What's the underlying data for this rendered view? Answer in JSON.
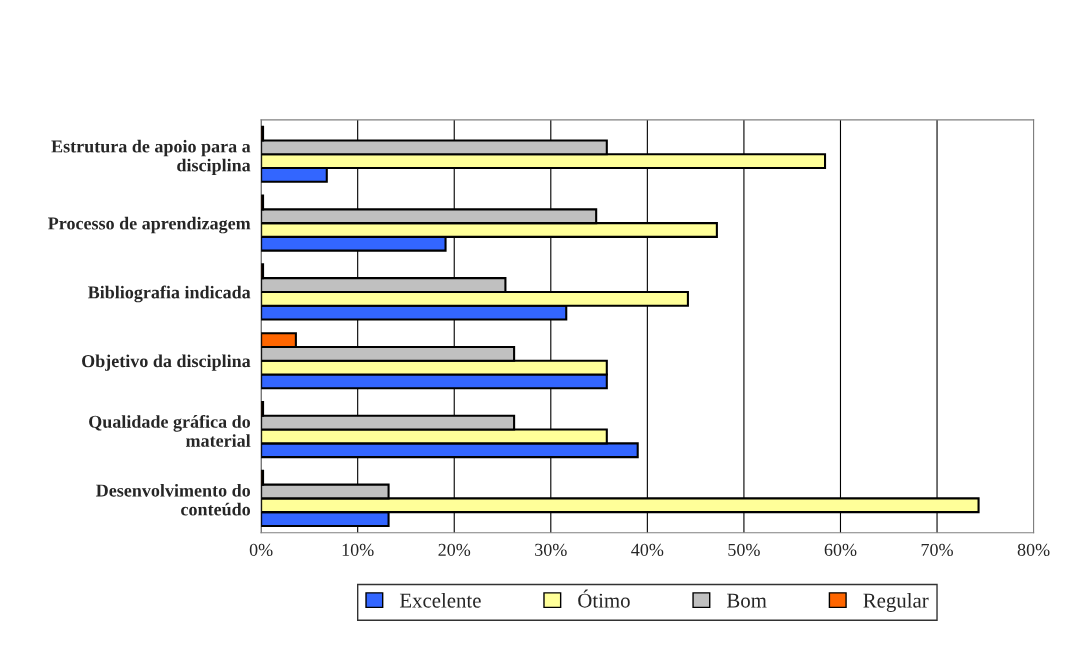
{
  "chart_data": {
    "type": "bar",
    "orientation": "horizontal",
    "categories": [
      "Estrutura de apoio para a\ndisciplina",
      "Processo de aprendizagem",
      "Bibliografia indicada",
      "Objetivo da disciplina",
      "Qualidade gráfica do\nmaterial",
      "Desenvolvimento do\nconteúdo"
    ],
    "series": [
      {
        "name": "Excelente",
        "color": "#3366ff",
        "values": [
          6.8,
          19.1,
          31.6,
          35.8,
          39.0,
          13.2
        ]
      },
      {
        "name": "Ótimo",
        "color": "#ffff99",
        "values": [
          58.4,
          47.2,
          44.2,
          35.8,
          35.8,
          74.3
        ]
      },
      {
        "name": "Bom",
        "color": "#c0c0c0",
        "values": [
          35.8,
          34.7,
          25.3,
          26.2,
          26.2,
          13.2
        ]
      },
      {
        "name": "Regular",
        "color": "#ff6600",
        "values": [
          0.2,
          0.2,
          0.2,
          3.6,
          0.2,
          0.2
        ]
      }
    ],
    "xlim": [
      0,
      80
    ],
    "xticks": [
      {
        "value": 0,
        "label": "0%"
      },
      {
        "value": 10,
        "label": "10%"
      },
      {
        "value": 20,
        "label": "20%"
      },
      {
        "value": 30,
        "label": "30%"
      },
      {
        "value": 40,
        "label": "40%"
      },
      {
        "value": 50,
        "label": "50%"
      },
      {
        "value": 60,
        "label": "60%"
      },
      {
        "value": 70,
        "label": "70%"
      },
      {
        "value": 80,
        "label": "80%"
      }
    ],
    "grid": "x",
    "legend": "bottom"
  }
}
